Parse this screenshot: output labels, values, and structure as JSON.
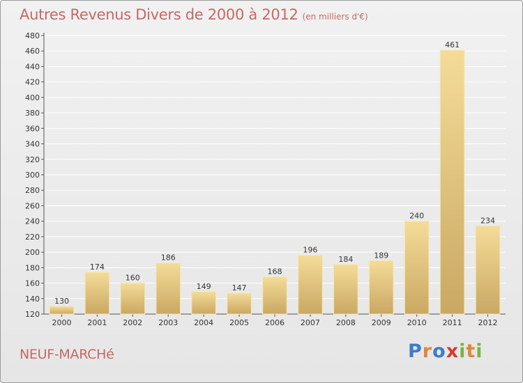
{
  "title": "Autres Revenus Divers de 2000 à 2012",
  "subtitle": "(en milliers d'€)",
  "town": "NEUF-MARCHé",
  "logo": {
    "text": "Proxiti",
    "letters": [
      {
        "char": "P",
        "color": "#3d7cc9"
      },
      {
        "char": "r",
        "color": "#e2863a"
      },
      {
        "char": "o",
        "color": "#3d7cc9"
      },
      {
        "char": "x",
        "color": "#d63a2f"
      },
      {
        "char": "i",
        "color": "#7cb342"
      },
      {
        "char": "t",
        "color": "#e2863a"
      },
      {
        "char": "i",
        "color": "#7cb342"
      }
    ]
  },
  "colors": {
    "bar_light": "#f4dc98",
    "bar_dark": "#c9a863",
    "title": "#c46a63",
    "grid": "#ffffff"
  },
  "chart_data": {
    "type": "bar",
    "categories": [
      "2000",
      "2001",
      "2002",
      "2003",
      "2004",
      "2005",
      "2006",
      "2007",
      "2008",
      "2009",
      "2010",
      "2011",
      "2012"
    ],
    "values": [
      130,
      174,
      160,
      186,
      149,
      147,
      168,
      196,
      184,
      189,
      240,
      461,
      234
    ],
    "ylim": [
      120,
      480
    ],
    "yticks": [
      120,
      140,
      160,
      180,
      200,
      220,
      240,
      260,
      280,
      300,
      320,
      340,
      360,
      380,
      400,
      420,
      440,
      460,
      480
    ],
    "grid": true,
    "data_labels": true
  }
}
